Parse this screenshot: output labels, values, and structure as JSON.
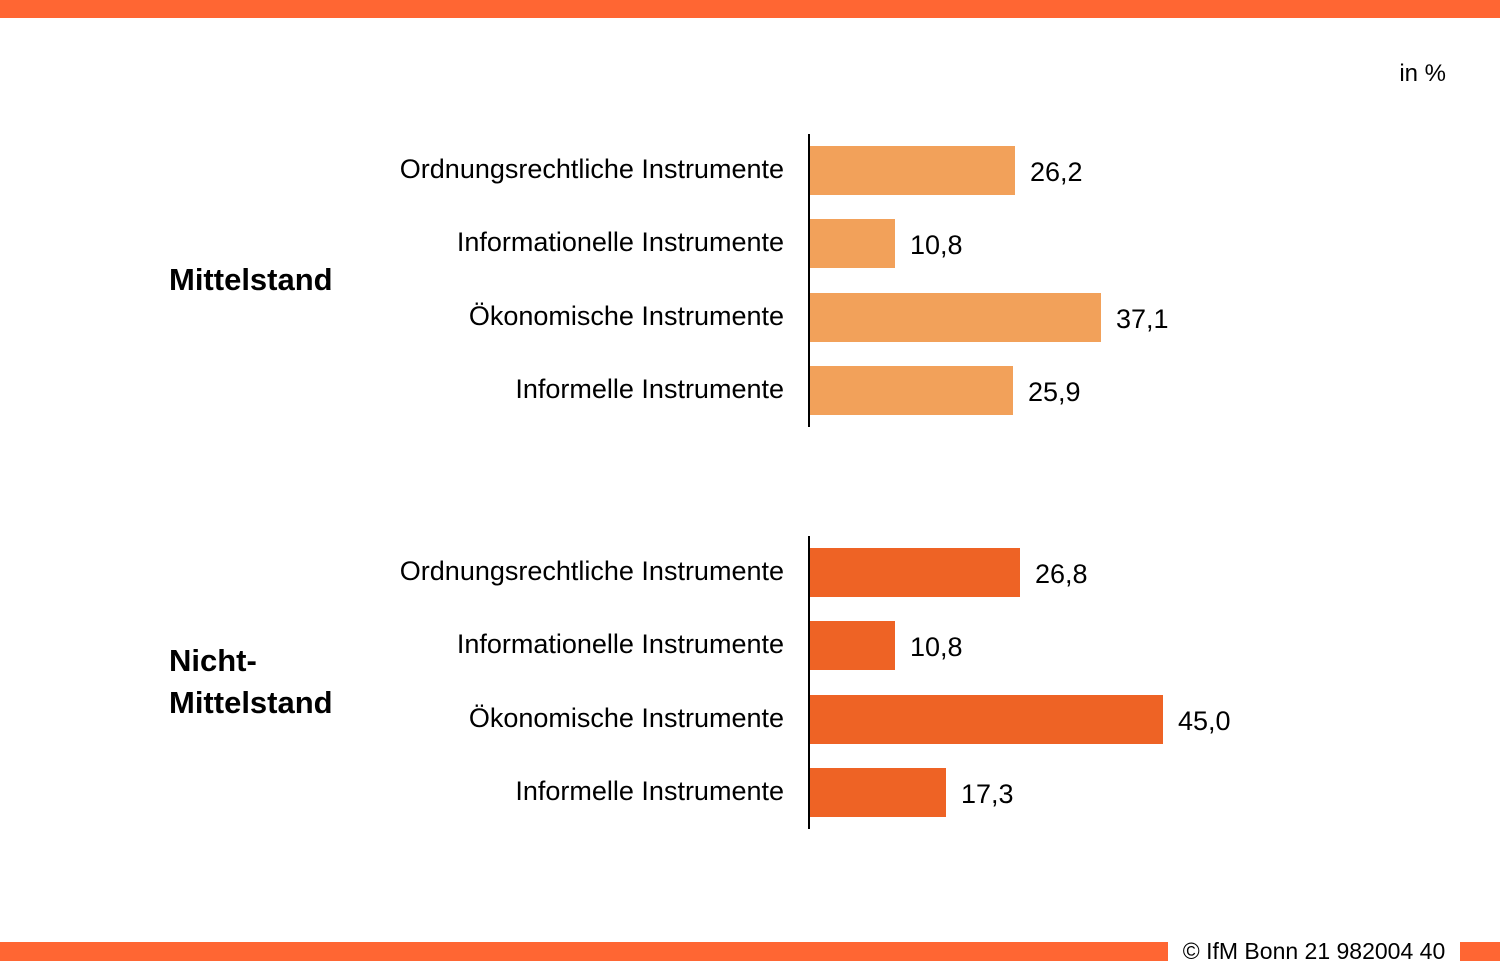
{
  "chart_data": {
    "type": "bar",
    "orientation": "horizontal",
    "unit": "in %",
    "categories": [
      "Ordnungsrechtliche Instrumente",
      "Informationelle Instrumente",
      "Ökonomische Instrumente",
      "Informelle Instrumente"
    ],
    "groups": [
      {
        "label": "Mittelstand",
        "color": "#F2A15A",
        "values": [
          26.2,
          10.8,
          37.1,
          25.9
        ],
        "value_labels": [
          "26,2",
          "10,8",
          "37,1",
          "25,9"
        ]
      },
      {
        "label": "Nicht-\nMittelstand",
        "color": "#EE6325",
        "values": [
          26.8,
          10.8,
          45.0,
          17.3
        ],
        "value_labels": [
          "26,8",
          "10,8",
          "45,0",
          "17,3"
        ]
      }
    ],
    "xlim": [
      0,
      45.0
    ],
    "grid": false,
    "legend": "none"
  },
  "footer": {
    "copyright": "© IfM Bonn 21 982004 40"
  },
  "colors": {
    "stripe": "#FF6633"
  }
}
